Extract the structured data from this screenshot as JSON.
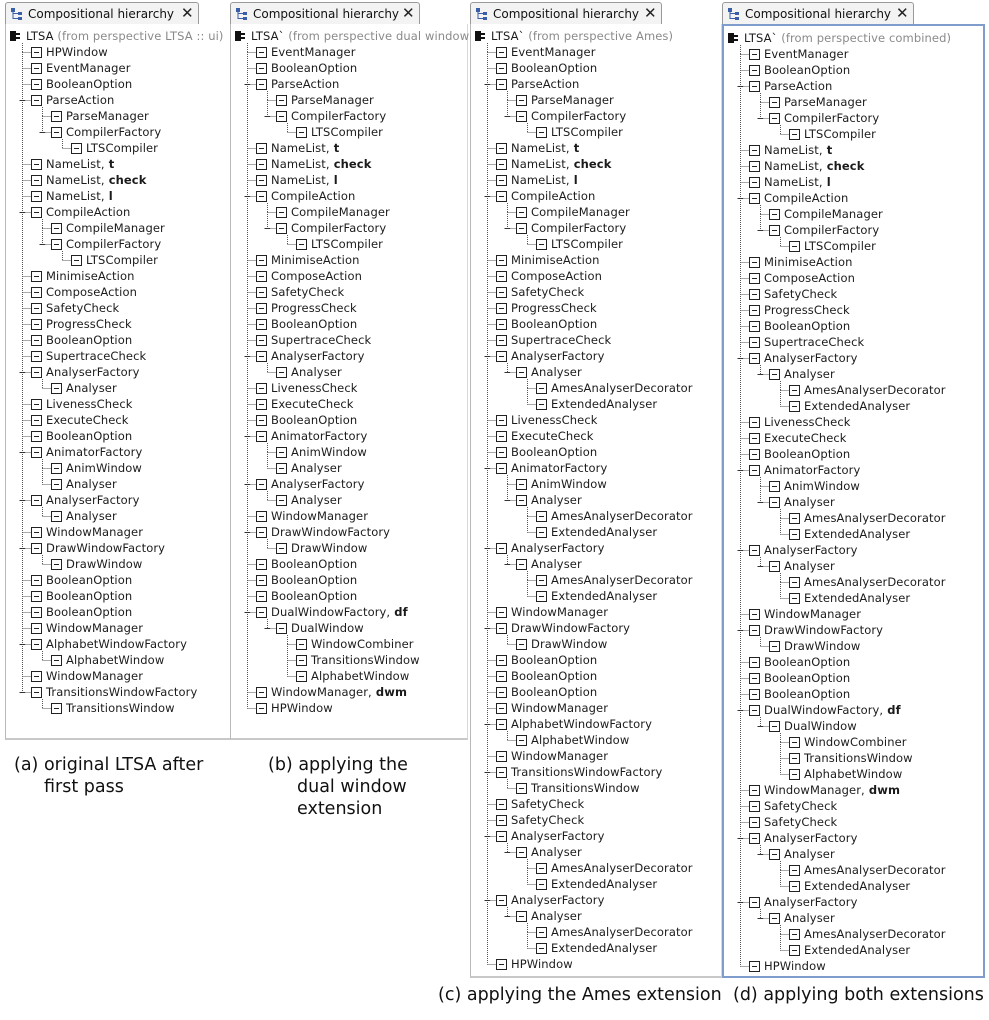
{
  "panels": [
    {
      "tab_title": "Compositional hierarchy",
      "root": {
        "label": "LTSA",
        "perspective": "(from perspective LTSA :: ui)"
      },
      "rows": [
        {
          "d": 1,
          "t": "HPWindow"
        },
        {
          "d": 1,
          "t": "EventManager"
        },
        {
          "d": 1,
          "t": "BooleanOption"
        },
        {
          "d": 1,
          "t": "ParseAction",
          "e": 1
        },
        {
          "d": 2,
          "t": "ParseManager"
        },
        {
          "d": 2,
          "t": "CompilerFactory",
          "e": 1
        },
        {
          "d": 3,
          "t": "LTSCompiler"
        },
        {
          "d": 1,
          "t": "NameList,",
          "b": "t"
        },
        {
          "d": 1,
          "t": "NameList,",
          "b": "check"
        },
        {
          "d": 1,
          "t": "NameList,",
          "b": "l"
        },
        {
          "d": 1,
          "t": "CompileAction",
          "e": 1
        },
        {
          "d": 2,
          "t": "CompileManager"
        },
        {
          "d": 2,
          "t": "CompilerFactory",
          "e": 1
        },
        {
          "d": 3,
          "t": "LTSCompiler"
        },
        {
          "d": 1,
          "t": "MinimiseAction"
        },
        {
          "d": 1,
          "t": "ComposeAction"
        },
        {
          "d": 1,
          "t": "SafetyCheck"
        },
        {
          "d": 1,
          "t": "ProgressCheck"
        },
        {
          "d": 1,
          "t": "BooleanOption"
        },
        {
          "d": 1,
          "t": "SupertraceCheck"
        },
        {
          "d": 1,
          "t": "AnalyserFactory",
          "e": 1
        },
        {
          "d": 2,
          "t": "Analyser"
        },
        {
          "d": 1,
          "t": "LivenessCheck"
        },
        {
          "d": 1,
          "t": "ExecuteCheck"
        },
        {
          "d": 1,
          "t": "BooleanOption"
        },
        {
          "d": 1,
          "t": "AnimatorFactory",
          "e": 1
        },
        {
          "d": 2,
          "t": "AnimWindow"
        },
        {
          "d": 2,
          "t": "Analyser"
        },
        {
          "d": 1,
          "t": "AnalyserFactory",
          "e": 1
        },
        {
          "d": 2,
          "t": "Analyser"
        },
        {
          "d": 1,
          "t": "WindowManager"
        },
        {
          "d": 1,
          "t": "DrawWindowFactory",
          "e": 1
        },
        {
          "d": 2,
          "t": "DrawWindow"
        },
        {
          "d": 1,
          "t": "BooleanOption"
        },
        {
          "d": 1,
          "t": "BooleanOption"
        },
        {
          "d": 1,
          "t": "BooleanOption"
        },
        {
          "d": 1,
          "t": "WindowManager"
        },
        {
          "d": 1,
          "t": "AlphabetWindowFactory",
          "e": 1
        },
        {
          "d": 2,
          "t": "AlphabetWindow"
        },
        {
          "d": 1,
          "t": "WindowManager"
        },
        {
          "d": 1,
          "t": "TransitionsWindowFactory",
          "e": 1
        },
        {
          "d": 2,
          "t": "TransitionsWindow"
        }
      ]
    },
    {
      "tab_title": "Compositional hierarchy",
      "root": {
        "label": "LTSA`",
        "perspective": "(from perspective dual window)"
      },
      "rows": [
        {
          "d": 1,
          "t": "EventManager"
        },
        {
          "d": 1,
          "t": "BooleanOption"
        },
        {
          "d": 1,
          "t": "ParseAction",
          "e": 1
        },
        {
          "d": 2,
          "t": "ParseManager"
        },
        {
          "d": 2,
          "t": "CompilerFactory",
          "e": 1
        },
        {
          "d": 3,
          "t": "LTSCompiler"
        },
        {
          "d": 1,
          "t": "NameList,",
          "b": "t"
        },
        {
          "d": 1,
          "t": "NameList,",
          "b": "check"
        },
        {
          "d": 1,
          "t": "NameList,",
          "b": "l"
        },
        {
          "d": 1,
          "t": "CompileAction",
          "e": 1
        },
        {
          "d": 2,
          "t": "CompileManager"
        },
        {
          "d": 2,
          "t": "CompilerFactory",
          "e": 1
        },
        {
          "d": 3,
          "t": "LTSCompiler"
        },
        {
          "d": 1,
          "t": "MinimiseAction"
        },
        {
          "d": 1,
          "t": "ComposeAction"
        },
        {
          "d": 1,
          "t": "SafetyCheck"
        },
        {
          "d": 1,
          "t": "ProgressCheck"
        },
        {
          "d": 1,
          "t": "BooleanOption"
        },
        {
          "d": 1,
          "t": "SupertraceCheck"
        },
        {
          "d": 1,
          "t": "AnalyserFactory",
          "e": 1
        },
        {
          "d": 2,
          "t": "Analyser"
        },
        {
          "d": 1,
          "t": "LivenessCheck"
        },
        {
          "d": 1,
          "t": "ExecuteCheck"
        },
        {
          "d": 1,
          "t": "BooleanOption"
        },
        {
          "d": 1,
          "t": "AnimatorFactory",
          "e": 1
        },
        {
          "d": 2,
          "t": "AnimWindow"
        },
        {
          "d": 2,
          "t": "Analyser"
        },
        {
          "d": 1,
          "t": "AnalyserFactory",
          "e": 1
        },
        {
          "d": 2,
          "t": "Analyser"
        },
        {
          "d": 1,
          "t": "WindowManager"
        },
        {
          "d": 1,
          "t": "DrawWindowFactory",
          "e": 1
        },
        {
          "d": 2,
          "t": "DrawWindow"
        },
        {
          "d": 1,
          "t": "BooleanOption"
        },
        {
          "d": 1,
          "t": "BooleanOption"
        },
        {
          "d": 1,
          "t": "BooleanOption"
        },
        {
          "d": 1,
          "t": "DualWindowFactory,",
          "b": "df",
          "e": 1
        },
        {
          "d": 2,
          "t": "DualWindow",
          "e": 1
        },
        {
          "d": 3,
          "t": "WindowCombiner"
        },
        {
          "d": 3,
          "t": "TransitionsWindow"
        },
        {
          "d": 3,
          "t": "AlphabetWindow"
        },
        {
          "d": 1,
          "t": "WindowManager,",
          "b": "dwm"
        },
        {
          "d": 1,
          "t": "HPWindow"
        }
      ]
    },
    {
      "tab_title": "Compositional hierarchy",
      "root": {
        "label": "LTSA`",
        "perspective": "(from perspective Ames)"
      },
      "rows": [
        {
          "d": 1,
          "t": "EventManager"
        },
        {
          "d": 1,
          "t": "BooleanOption"
        },
        {
          "d": 1,
          "t": "ParseAction",
          "e": 1
        },
        {
          "d": 2,
          "t": "ParseManager"
        },
        {
          "d": 2,
          "t": "CompilerFactory",
          "e": 1
        },
        {
          "d": 3,
          "t": "LTSCompiler"
        },
        {
          "d": 1,
          "t": "NameList,",
          "b": "t"
        },
        {
          "d": 1,
          "t": "NameList,",
          "b": "check"
        },
        {
          "d": 1,
          "t": "NameList,",
          "b": "l"
        },
        {
          "d": 1,
          "t": "CompileAction",
          "e": 1
        },
        {
          "d": 2,
          "t": "CompileManager"
        },
        {
          "d": 2,
          "t": "CompilerFactory",
          "e": 1
        },
        {
          "d": 3,
          "t": "LTSCompiler"
        },
        {
          "d": 1,
          "t": "MinimiseAction"
        },
        {
          "d": 1,
          "t": "ComposeAction"
        },
        {
          "d": 1,
          "t": "SafetyCheck"
        },
        {
          "d": 1,
          "t": "ProgressCheck"
        },
        {
          "d": 1,
          "t": "BooleanOption"
        },
        {
          "d": 1,
          "t": "SupertraceCheck"
        },
        {
          "d": 1,
          "t": "AnalyserFactory",
          "e": 1
        },
        {
          "d": 2,
          "t": "Analyser",
          "e": 1
        },
        {
          "d": 3,
          "t": "AmesAnalyserDecorator"
        },
        {
          "d": 3,
          "t": "ExtendedAnalyser"
        },
        {
          "d": 1,
          "t": "LivenessCheck"
        },
        {
          "d": 1,
          "t": "ExecuteCheck"
        },
        {
          "d": 1,
          "t": "BooleanOption"
        },
        {
          "d": 1,
          "t": "AnimatorFactory",
          "e": 1
        },
        {
          "d": 2,
          "t": "AnimWindow"
        },
        {
          "d": 2,
          "t": "Analyser",
          "e": 1
        },
        {
          "d": 3,
          "t": "AmesAnalyserDecorator"
        },
        {
          "d": 3,
          "t": "ExtendedAnalyser"
        },
        {
          "d": 1,
          "t": "AnalyserFactory",
          "e": 1
        },
        {
          "d": 2,
          "t": "Analyser",
          "e": 1
        },
        {
          "d": 3,
          "t": "AmesAnalyserDecorator"
        },
        {
          "d": 3,
          "t": "ExtendedAnalyser"
        },
        {
          "d": 1,
          "t": "WindowManager"
        },
        {
          "d": 1,
          "t": "DrawWindowFactory",
          "e": 1
        },
        {
          "d": 2,
          "t": "DrawWindow"
        },
        {
          "d": 1,
          "t": "BooleanOption"
        },
        {
          "d": 1,
          "t": "BooleanOption"
        },
        {
          "d": 1,
          "t": "BooleanOption"
        },
        {
          "d": 1,
          "t": "WindowManager"
        },
        {
          "d": 1,
          "t": "AlphabetWindowFactory",
          "e": 1
        },
        {
          "d": 2,
          "t": "AlphabetWindow"
        },
        {
          "d": 1,
          "t": "WindowManager"
        },
        {
          "d": 1,
          "t": "TransitionsWindowFactory",
          "e": 1
        },
        {
          "d": 2,
          "t": "TransitionsWindow"
        },
        {
          "d": 1,
          "t": "SafetyCheck"
        },
        {
          "d": 1,
          "t": "SafetyCheck"
        },
        {
          "d": 1,
          "t": "AnalyserFactory",
          "e": 1
        },
        {
          "d": 2,
          "t": "Analyser",
          "e": 1
        },
        {
          "d": 3,
          "t": "AmesAnalyserDecorator"
        },
        {
          "d": 3,
          "t": "ExtendedAnalyser"
        },
        {
          "d": 1,
          "t": "AnalyserFactory",
          "e": 1
        },
        {
          "d": 2,
          "t": "Analyser",
          "e": 1
        },
        {
          "d": 3,
          "t": "AmesAnalyserDecorator"
        },
        {
          "d": 3,
          "t": "ExtendedAnalyser"
        },
        {
          "d": 1,
          "t": "HPWindow"
        }
      ]
    },
    {
      "tab_title": "Compositional hierarchy",
      "root": {
        "label": "LTSA`",
        "perspective": "(from perspective combined)"
      },
      "rows": [
        {
          "d": 1,
          "t": "EventManager"
        },
        {
          "d": 1,
          "t": "BooleanOption"
        },
        {
          "d": 1,
          "t": "ParseAction",
          "e": 1
        },
        {
          "d": 2,
          "t": "ParseManager"
        },
        {
          "d": 2,
          "t": "CompilerFactory",
          "e": 1
        },
        {
          "d": 3,
          "t": "LTSCompiler"
        },
        {
          "d": 1,
          "t": "NameList,",
          "b": "t"
        },
        {
          "d": 1,
          "t": "NameList,",
          "b": "check"
        },
        {
          "d": 1,
          "t": "NameList,",
          "b": "l"
        },
        {
          "d": 1,
          "t": "CompileAction",
          "e": 1
        },
        {
          "d": 2,
          "t": "CompileManager"
        },
        {
          "d": 2,
          "t": "CompilerFactory",
          "e": 1
        },
        {
          "d": 3,
          "t": "LTSCompiler"
        },
        {
          "d": 1,
          "t": "MinimiseAction"
        },
        {
          "d": 1,
          "t": "ComposeAction"
        },
        {
          "d": 1,
          "t": "SafetyCheck"
        },
        {
          "d": 1,
          "t": "ProgressCheck"
        },
        {
          "d": 1,
          "t": "BooleanOption"
        },
        {
          "d": 1,
          "t": "SupertraceCheck"
        },
        {
          "d": 1,
          "t": "AnalyserFactory",
          "e": 1
        },
        {
          "d": 2,
          "t": "Analyser",
          "e": 1
        },
        {
          "d": 3,
          "t": "AmesAnalyserDecorator"
        },
        {
          "d": 3,
          "t": "ExtendedAnalyser"
        },
        {
          "d": 1,
          "t": "LivenessCheck"
        },
        {
          "d": 1,
          "t": "ExecuteCheck"
        },
        {
          "d": 1,
          "t": "BooleanOption"
        },
        {
          "d": 1,
          "t": "AnimatorFactory",
          "e": 1
        },
        {
          "d": 2,
          "t": "AnimWindow"
        },
        {
          "d": 2,
          "t": "Analyser",
          "e": 1
        },
        {
          "d": 3,
          "t": "AmesAnalyserDecorator"
        },
        {
          "d": 3,
          "t": "ExtendedAnalyser"
        },
        {
          "d": 1,
          "t": "AnalyserFactory",
          "e": 1
        },
        {
          "d": 2,
          "t": "Analyser",
          "e": 1
        },
        {
          "d": 3,
          "t": "AmesAnalyserDecorator"
        },
        {
          "d": 3,
          "t": "ExtendedAnalyser"
        },
        {
          "d": 1,
          "t": "WindowManager"
        },
        {
          "d": 1,
          "t": "DrawWindowFactory",
          "e": 1
        },
        {
          "d": 2,
          "t": "DrawWindow"
        },
        {
          "d": 1,
          "t": "BooleanOption"
        },
        {
          "d": 1,
          "t": "BooleanOption"
        },
        {
          "d": 1,
          "t": "BooleanOption"
        },
        {
          "d": 1,
          "t": "DualWindowFactory,",
          "b": "df",
          "e": 1
        },
        {
          "d": 2,
          "t": "DualWindow",
          "e": 1
        },
        {
          "d": 3,
          "t": "WindowCombiner"
        },
        {
          "d": 3,
          "t": "TransitionsWindow"
        },
        {
          "d": 3,
          "t": "AlphabetWindow"
        },
        {
          "d": 1,
          "t": "WindowManager,",
          "b": "dwm"
        },
        {
          "d": 1,
          "t": "SafetyCheck"
        },
        {
          "d": 1,
          "t": "SafetyCheck"
        },
        {
          "d": 1,
          "t": "AnalyserFactory",
          "e": 1
        },
        {
          "d": 2,
          "t": "Analyser",
          "e": 1
        },
        {
          "d": 3,
          "t": "AmesAnalyserDecorator"
        },
        {
          "d": 3,
          "t": "ExtendedAnalyser"
        },
        {
          "d": 1,
          "t": "AnalyserFactory",
          "e": 1
        },
        {
          "d": 2,
          "t": "Analyser",
          "e": 1
        },
        {
          "d": 3,
          "t": "AmesAnalyserDecorator"
        },
        {
          "d": 3,
          "t": "ExtendedAnalyser"
        },
        {
          "d": 1,
          "t": "HPWindow"
        }
      ]
    }
  ],
  "captions": {
    "a_line1": "(a) original LTSA after",
    "a_line2": "first pass",
    "b_line1": "(b) applying the",
    "b_line2": "dual window",
    "b_line3": "extension",
    "c": "(c) applying the Ames extension",
    "d": "(d) applying both extensions"
  },
  "colors": {
    "tree_line": "#555555",
    "selected_border": "#7f9ccd",
    "tab_icon": "#3a5ea8"
  }
}
